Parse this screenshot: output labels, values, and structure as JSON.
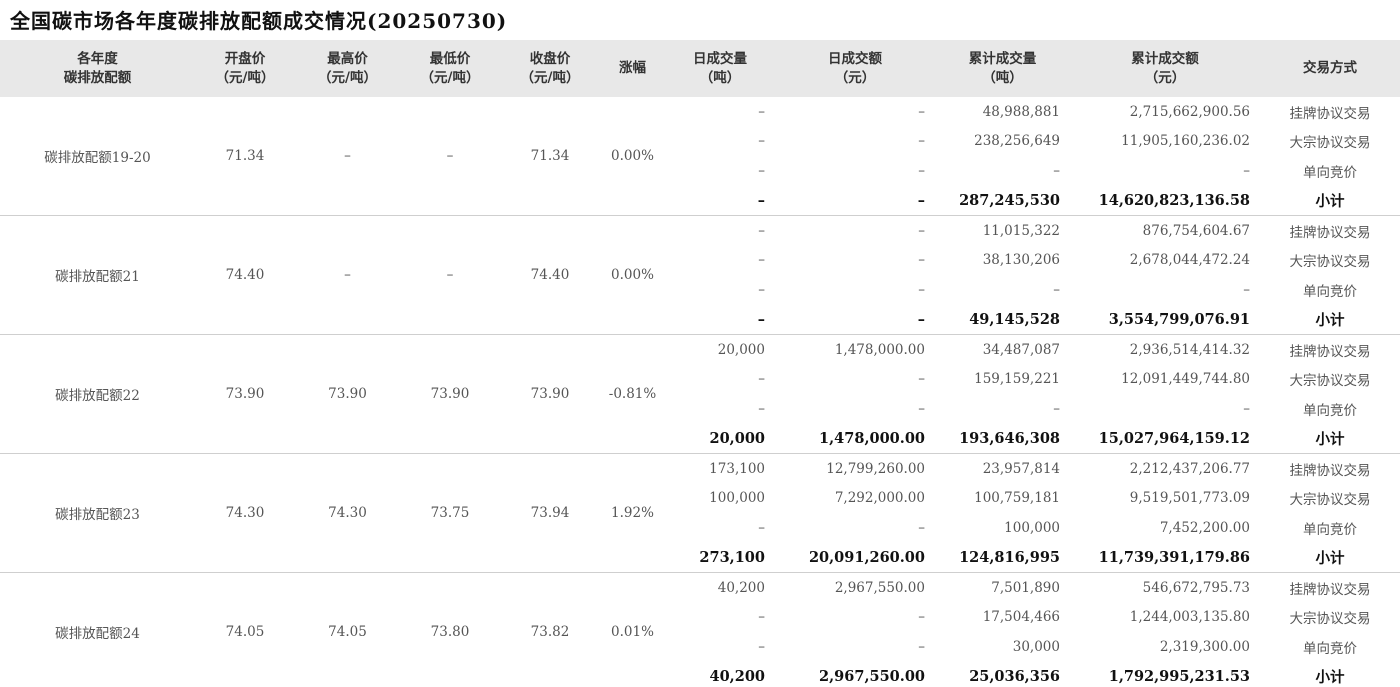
{
  "header": {
    "title": "全国碳市场各年度碳排放配额成交情况(20250730)"
  },
  "table": {
    "columns": [
      [
        "各年度",
        "碳排放配额"
      ],
      [
        "开盘价",
        "（元/吨）"
      ],
      [
        "最高价",
        "（元/吨）"
      ],
      [
        "最低价",
        "（元/吨）"
      ],
      [
        "收盘价",
        "（元/吨）"
      ],
      [
        "涨幅"
      ],
      [
        "日成交量",
        "（吨）"
      ],
      [
        "日成交额",
        "（元）"
      ],
      [
        "累计成交量",
        "（吨）"
      ],
      [
        "累计成交额",
        "（元）"
      ],
      [
        "交易方式"
      ]
    ],
    "groups": [
      {
        "cells": [
          "碳排放配额19-20",
          "71.34",
          "–",
          "–",
          "71.34",
          "0.00%"
        ],
        "rows": [
          [
            "–",
            "–",
            "48,988,881",
            "2,715,662,900.56",
            "挂牌协议交易"
          ],
          [
            "–",
            "–",
            "238,256,649",
            "11,905,160,236.02",
            "大宗协议交易"
          ],
          [
            "–",
            "–",
            "–",
            "–",
            "单向竞价"
          ],
          [
            "–",
            "–",
            "287,245,530",
            "14,620,823,136.58",
            "小计"
          ]
        ]
      },
      {
        "cells": [
          "碳排放配额21",
          "74.40",
          "–",
          "–",
          "74.40",
          "0.00%"
        ],
        "rows": [
          [
            "–",
            "–",
            "11,015,322",
            "876,754,604.67",
            "挂牌协议交易"
          ],
          [
            "–",
            "–",
            "38,130,206",
            "2,678,044,472.24",
            "大宗协议交易"
          ],
          [
            "–",
            "–",
            "–",
            "–",
            "单向竞价"
          ],
          [
            "–",
            "–",
            "49,145,528",
            "3,554,799,076.91",
            "小计"
          ]
        ]
      },
      {
        "cells": [
          "碳排放配额22",
          "73.90",
          "73.90",
          "73.90",
          "73.90",
          "-0.81%"
        ],
        "rows": [
          [
            "20,000",
            "1,478,000.00",
            "34,487,087",
            "2,936,514,414.32",
            "挂牌协议交易"
          ],
          [
            "–",
            "–",
            "159,159,221",
            "12,091,449,744.80",
            "大宗协议交易"
          ],
          [
            "–",
            "–",
            "–",
            "–",
            "单向竞价"
          ],
          [
            "20,000",
            "1,478,000.00",
            "193,646,308",
            "15,027,964,159.12",
            "小计"
          ]
        ]
      },
      {
        "cells": [
          "碳排放配额23",
          "74.30",
          "74.30",
          "73.75",
          "73.94",
          "1.92%"
        ],
        "rows": [
          [
            "173,100",
            "12,799,260.00",
            "23,957,814",
            "2,212,437,206.77",
            "挂牌协议交易"
          ],
          [
            "100,000",
            "7,292,000.00",
            "100,759,181",
            "9,519,501,773.09",
            "大宗协议交易"
          ],
          [
            "–",
            "–",
            "100,000",
            "7,452,200.00",
            "单向竞价"
          ],
          [
            "273,100",
            "20,091,260.00",
            "124,816,995",
            "11,739,391,179.86",
            "小计"
          ]
        ]
      },
      {
        "cells": [
          "碳排放配额24",
          "74.05",
          "74.05",
          "73.80",
          "73.82",
          "0.01%"
        ],
        "rows": [
          [
            "40,200",
            "2,967,550.00",
            "7,501,890",
            "546,672,795.73",
            "挂牌协议交易"
          ],
          [
            "–",
            "–",
            "17,504,466",
            "1,244,003,135.80",
            "大宗协议交易"
          ],
          [
            "–",
            "–",
            "30,000",
            "2,319,300.00",
            "单向竞价"
          ],
          [
            "40,200",
            "2,967,550.00",
            "25,036,356",
            "1,792,995,231.53",
            "小计"
          ]
        ]
      }
    ]
  }
}
